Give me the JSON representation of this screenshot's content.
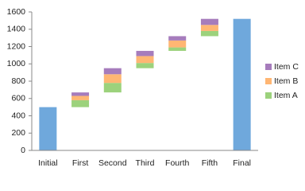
{
  "chart_data": {
    "type": "waterfall",
    "categories": [
      "Initial",
      "First",
      "Second",
      "Third",
      "Fourth",
      "Fifth",
      "Final"
    ],
    "totals": {
      "color": "#6fa8dc",
      "values": [
        500,
        null,
        null,
        null,
        null,
        null,
        1520
      ]
    },
    "series": [
      {
        "name": "Item A",
        "color": "#9cd27c",
        "values": [
          null,
          80,
          110,
          60,
          40,
          60,
          null
        ]
      },
      {
        "name": "Item B",
        "color": "#ffb673",
        "values": [
          null,
          50,
          100,
          80,
          80,
          70,
          null
        ]
      },
      {
        "name": "Item C",
        "color": "#a67cbc",
        "values": [
          null,
          40,
          70,
          60,
          50,
          70,
          null
        ]
      }
    ],
    "ylim": [
      0,
      1600
    ],
    "yticks": [
      0,
      200,
      400,
      600,
      800,
      1000,
      1200,
      1400,
      1600
    ],
    "grid": false,
    "legend": "right"
  }
}
